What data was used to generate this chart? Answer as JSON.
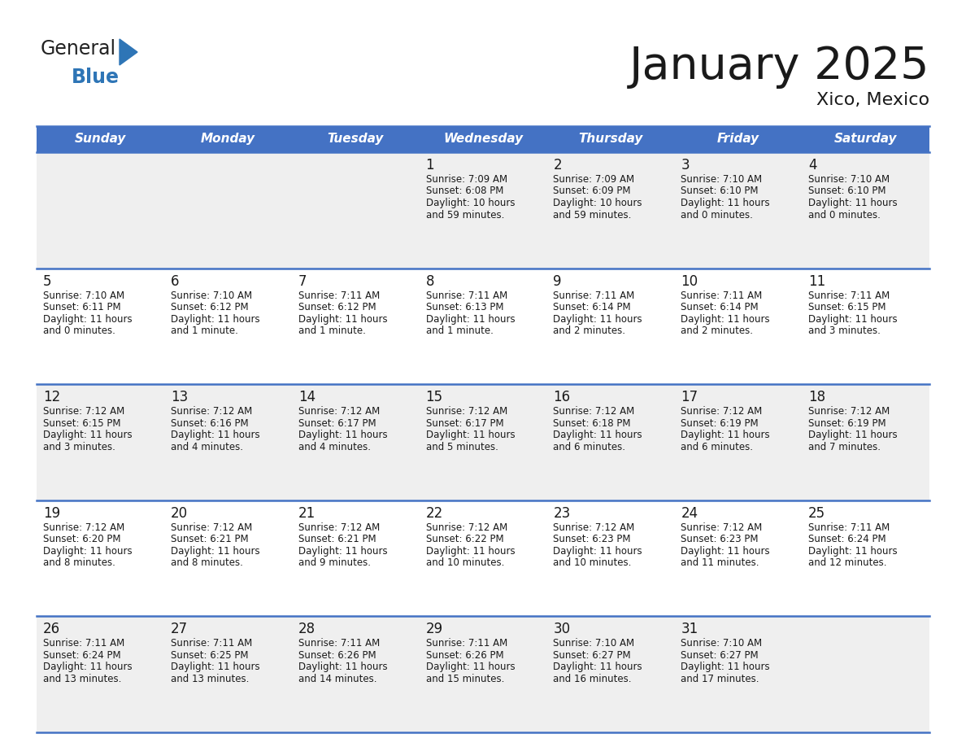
{
  "title": "January 2025",
  "subtitle": "Xico, Mexico",
  "header_color": "#4472C4",
  "header_text_color": "#FFFFFF",
  "cell_bg_even": "#EFEFEF",
  "cell_bg_odd": "#FFFFFF",
  "border_color": "#4472C4",
  "text_color": "#1a1a1a",
  "day_names": [
    "Sunday",
    "Monday",
    "Tuesday",
    "Wednesday",
    "Thursday",
    "Friday",
    "Saturday"
  ],
  "days": [
    {
      "day": 1,
      "col": 3,
      "row": 0,
      "sunrise": "7:09 AM",
      "sunset": "6:08 PM",
      "daylight_hours": 10,
      "daylight_minutes": 59
    },
    {
      "day": 2,
      "col": 4,
      "row": 0,
      "sunrise": "7:09 AM",
      "sunset": "6:09 PM",
      "daylight_hours": 10,
      "daylight_minutes": 59
    },
    {
      "day": 3,
      "col": 5,
      "row": 0,
      "sunrise": "7:10 AM",
      "sunset": "6:10 PM",
      "daylight_hours": 11,
      "daylight_minutes": 0
    },
    {
      "day": 4,
      "col": 6,
      "row": 0,
      "sunrise": "7:10 AM",
      "sunset": "6:10 PM",
      "daylight_hours": 11,
      "daylight_minutes": 0
    },
    {
      "day": 5,
      "col": 0,
      "row": 1,
      "sunrise": "7:10 AM",
      "sunset": "6:11 PM",
      "daylight_hours": 11,
      "daylight_minutes": 0
    },
    {
      "day": 6,
      "col": 1,
      "row": 1,
      "sunrise": "7:10 AM",
      "sunset": "6:12 PM",
      "daylight_hours": 11,
      "daylight_minutes": 1
    },
    {
      "day": 7,
      "col": 2,
      "row": 1,
      "sunrise": "7:11 AM",
      "sunset": "6:12 PM",
      "daylight_hours": 11,
      "daylight_minutes": 1
    },
    {
      "day": 8,
      "col": 3,
      "row": 1,
      "sunrise": "7:11 AM",
      "sunset": "6:13 PM",
      "daylight_hours": 11,
      "daylight_minutes": 1
    },
    {
      "day": 9,
      "col": 4,
      "row": 1,
      "sunrise": "7:11 AM",
      "sunset": "6:14 PM",
      "daylight_hours": 11,
      "daylight_minutes": 2
    },
    {
      "day": 10,
      "col": 5,
      "row": 1,
      "sunrise": "7:11 AM",
      "sunset": "6:14 PM",
      "daylight_hours": 11,
      "daylight_minutes": 2
    },
    {
      "day": 11,
      "col": 6,
      "row": 1,
      "sunrise": "7:11 AM",
      "sunset": "6:15 PM",
      "daylight_hours": 11,
      "daylight_minutes": 3
    },
    {
      "day": 12,
      "col": 0,
      "row": 2,
      "sunrise": "7:12 AM",
      "sunset": "6:15 PM",
      "daylight_hours": 11,
      "daylight_minutes": 3
    },
    {
      "day": 13,
      "col": 1,
      "row": 2,
      "sunrise": "7:12 AM",
      "sunset": "6:16 PM",
      "daylight_hours": 11,
      "daylight_minutes": 4
    },
    {
      "day": 14,
      "col": 2,
      "row": 2,
      "sunrise": "7:12 AM",
      "sunset": "6:17 PM",
      "daylight_hours": 11,
      "daylight_minutes": 4
    },
    {
      "day": 15,
      "col": 3,
      "row": 2,
      "sunrise": "7:12 AM",
      "sunset": "6:17 PM",
      "daylight_hours": 11,
      "daylight_minutes": 5
    },
    {
      "day": 16,
      "col": 4,
      "row": 2,
      "sunrise": "7:12 AM",
      "sunset": "6:18 PM",
      "daylight_hours": 11,
      "daylight_minutes": 6
    },
    {
      "day": 17,
      "col": 5,
      "row": 2,
      "sunrise": "7:12 AM",
      "sunset": "6:19 PM",
      "daylight_hours": 11,
      "daylight_minutes": 6
    },
    {
      "day": 18,
      "col": 6,
      "row": 2,
      "sunrise": "7:12 AM",
      "sunset": "6:19 PM",
      "daylight_hours": 11,
      "daylight_minutes": 7
    },
    {
      "day": 19,
      "col": 0,
      "row": 3,
      "sunrise": "7:12 AM",
      "sunset": "6:20 PM",
      "daylight_hours": 11,
      "daylight_minutes": 8
    },
    {
      "day": 20,
      "col": 1,
      "row": 3,
      "sunrise": "7:12 AM",
      "sunset": "6:21 PM",
      "daylight_hours": 11,
      "daylight_minutes": 8
    },
    {
      "day": 21,
      "col": 2,
      "row": 3,
      "sunrise": "7:12 AM",
      "sunset": "6:21 PM",
      "daylight_hours": 11,
      "daylight_minutes": 9
    },
    {
      "day": 22,
      "col": 3,
      "row": 3,
      "sunrise": "7:12 AM",
      "sunset": "6:22 PM",
      "daylight_hours": 11,
      "daylight_minutes": 10
    },
    {
      "day": 23,
      "col": 4,
      "row": 3,
      "sunrise": "7:12 AM",
      "sunset": "6:23 PM",
      "daylight_hours": 11,
      "daylight_minutes": 10
    },
    {
      "day": 24,
      "col": 5,
      "row": 3,
      "sunrise": "7:12 AM",
      "sunset": "6:23 PM",
      "daylight_hours": 11,
      "daylight_minutes": 11
    },
    {
      "day": 25,
      "col": 6,
      "row": 3,
      "sunrise": "7:11 AM",
      "sunset": "6:24 PM",
      "daylight_hours": 11,
      "daylight_minutes": 12
    },
    {
      "day": 26,
      "col": 0,
      "row": 4,
      "sunrise": "7:11 AM",
      "sunset": "6:24 PM",
      "daylight_hours": 11,
      "daylight_minutes": 13
    },
    {
      "day": 27,
      "col": 1,
      "row": 4,
      "sunrise": "7:11 AM",
      "sunset": "6:25 PM",
      "daylight_hours": 11,
      "daylight_minutes": 13
    },
    {
      "day": 28,
      "col": 2,
      "row": 4,
      "sunrise": "7:11 AM",
      "sunset": "6:26 PM",
      "daylight_hours": 11,
      "daylight_minutes": 14
    },
    {
      "day": 29,
      "col": 3,
      "row": 4,
      "sunrise": "7:11 AM",
      "sunset": "6:26 PM",
      "daylight_hours": 11,
      "daylight_minutes": 15
    },
    {
      "day": 30,
      "col": 4,
      "row": 4,
      "sunrise": "7:10 AM",
      "sunset": "6:27 PM",
      "daylight_hours": 11,
      "daylight_minutes": 16
    },
    {
      "day": 31,
      "col": 5,
      "row": 4,
      "sunrise": "7:10 AM",
      "sunset": "6:27 PM",
      "daylight_hours": 11,
      "daylight_minutes": 17
    }
  ],
  "logo_text_general": "General",
  "logo_text_blue": "Blue",
  "logo_color_general": "#222222",
  "logo_color_blue": "#2E75B6",
  "logo_triangle_color": "#2E75B6",
  "title_fontsize": 40,
  "subtitle_fontsize": 16,
  "header_fontsize": 11,
  "day_num_fontsize": 12,
  "cell_text_fontsize": 8.5
}
